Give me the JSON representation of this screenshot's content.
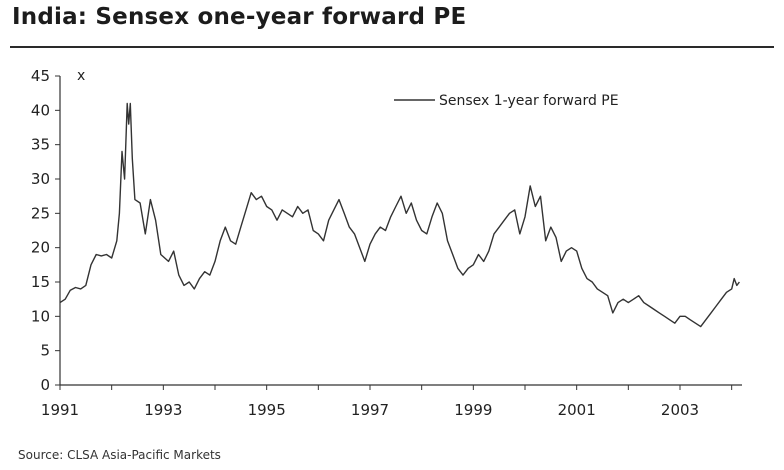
{
  "header": {
    "title": "India: Sensex one-year forward PE"
  },
  "footer": {
    "source": "Source: CLSA Asia-Pacific Markets"
  },
  "chart_data": {
    "type": "line",
    "title": "India: Sensex one-year forward PE",
    "xlabel": "",
    "ylabel": "x",
    "xlim": [
      1991.0,
      2004.2
    ],
    "ylim": [
      0,
      45
    ],
    "x_ticks": [
      1991,
      1993,
      1995,
      1997,
      1999,
      2001,
      2003
    ],
    "y_ticks": [
      0,
      5,
      10,
      15,
      20,
      25,
      30,
      35,
      40,
      45
    ],
    "grid": false,
    "legend_position": "top-right",
    "line_color": "#333333",
    "series": [
      {
        "name": "Sensex 1-year forward PE",
        "points": [
          [
            1991.0,
            12.0
          ],
          [
            1991.1,
            12.5
          ],
          [
            1991.2,
            13.8
          ],
          [
            1991.3,
            14.2
          ],
          [
            1991.4,
            14.0
          ],
          [
            1991.5,
            14.5
          ],
          [
            1991.6,
            17.5
          ],
          [
            1991.7,
            19.0
          ],
          [
            1991.8,
            18.8
          ],
          [
            1991.9,
            19.0
          ],
          [
            1992.0,
            18.5
          ],
          [
            1992.1,
            21.0
          ],
          [
            1992.15,
            25.0
          ],
          [
            1992.2,
            34.0
          ],
          [
            1992.25,
            30.0
          ],
          [
            1992.3,
            41.0
          ],
          [
            1992.33,
            38.0
          ],
          [
            1992.36,
            41.0
          ],
          [
            1992.4,
            33.0
          ],
          [
            1992.45,
            27.0
          ],
          [
            1992.55,
            26.5
          ],
          [
            1992.65,
            22.0
          ],
          [
            1992.75,
            27.0
          ],
          [
            1992.85,
            24.0
          ],
          [
            1992.95,
            19.0
          ],
          [
            1993.1,
            18.0
          ],
          [
            1993.2,
            19.5
          ],
          [
            1993.3,
            16.0
          ],
          [
            1993.4,
            14.5
          ],
          [
            1993.5,
            15.0
          ],
          [
            1993.6,
            14.0
          ],
          [
            1993.7,
            15.5
          ],
          [
            1993.8,
            16.5
          ],
          [
            1993.9,
            16.0
          ],
          [
            1994.0,
            18.0
          ],
          [
            1994.1,
            21.0
          ],
          [
            1994.2,
            23.0
          ],
          [
            1994.3,
            21.0
          ],
          [
            1994.4,
            20.5
          ],
          [
            1994.5,
            23.0
          ],
          [
            1994.6,
            25.5
          ],
          [
            1994.7,
            28.0
          ],
          [
            1994.8,
            27.0
          ],
          [
            1994.9,
            27.5
          ],
          [
            1995.0,
            26.0
          ],
          [
            1995.1,
            25.5
          ],
          [
            1995.2,
            24.0
          ],
          [
            1995.3,
            25.5
          ],
          [
            1995.4,
            25.0
          ],
          [
            1995.5,
            24.5
          ],
          [
            1995.6,
            26.0
          ],
          [
            1995.7,
            25.0
          ],
          [
            1995.8,
            25.5
          ],
          [
            1995.9,
            22.5
          ],
          [
            1996.0,
            22.0
          ],
          [
            1996.1,
            21.0
          ],
          [
            1996.2,
            24.0
          ],
          [
            1996.3,
            25.5
          ],
          [
            1996.4,
            27.0
          ],
          [
            1996.5,
            25.0
          ],
          [
            1996.6,
            23.0
          ],
          [
            1996.7,
            22.0
          ],
          [
            1996.8,
            20.0
          ],
          [
            1996.9,
            18.0
          ],
          [
            1997.0,
            20.5
          ],
          [
            1997.1,
            22.0
          ],
          [
            1997.2,
            23.0
          ],
          [
            1997.3,
            22.5
          ],
          [
            1997.4,
            24.5
          ],
          [
            1997.5,
            26.0
          ],
          [
            1997.6,
            27.5
          ],
          [
            1997.7,
            25.0
          ],
          [
            1997.8,
            26.5
          ],
          [
            1997.9,
            24.0
          ],
          [
            1998.0,
            22.5
          ],
          [
            1998.1,
            22.0
          ],
          [
            1998.2,
            24.5
          ],
          [
            1998.3,
            26.5
          ],
          [
            1998.4,
            25.0
          ],
          [
            1998.5,
            21.0
          ],
          [
            1998.6,
            19.0
          ],
          [
            1998.7,
            17.0
          ],
          [
            1998.8,
            16.0
          ],
          [
            1998.9,
            17.0
          ],
          [
            1999.0,
            17.5
          ],
          [
            1999.1,
            19.0
          ],
          [
            1999.2,
            18.0
          ],
          [
            1999.3,
            19.5
          ],
          [
            1999.4,
            22.0
          ],
          [
            1999.5,
            23.0
          ],
          [
            1999.6,
            24.0
          ],
          [
            1999.7,
            25.0
          ],
          [
            1999.8,
            25.5
          ],
          [
            1999.9,
            22.0
          ],
          [
            2000.0,
            24.5
          ],
          [
            2000.1,
            29.0
          ],
          [
            2000.2,
            26.0
          ],
          [
            2000.3,
            27.5
          ],
          [
            2000.4,
            21.0
          ],
          [
            2000.5,
            23.0
          ],
          [
            2000.6,
            21.5
          ],
          [
            2000.7,
            18.0
          ],
          [
            2000.8,
            19.5
          ],
          [
            2000.9,
            20.0
          ],
          [
            2001.0,
            19.5
          ],
          [
            2001.1,
            17.0
          ],
          [
            2001.2,
            15.5
          ],
          [
            2001.3,
            15.0
          ],
          [
            2001.4,
            14.0
          ],
          [
            2001.5,
            13.5
          ],
          [
            2001.6,
            13.0
          ],
          [
            2001.7,
            10.5
          ],
          [
            2001.8,
            12.0
          ],
          [
            2001.9,
            12.5
          ],
          [
            2002.0,
            12.0
          ],
          [
            2002.1,
            12.5
          ],
          [
            2002.2,
            13.0
          ],
          [
            2002.3,
            12.0
          ],
          [
            2002.4,
            11.5
          ],
          [
            2002.5,
            11.0
          ],
          [
            2002.6,
            10.5
          ],
          [
            2002.7,
            10.0
          ],
          [
            2002.8,
            9.5
          ],
          [
            2002.9,
            9.0
          ],
          [
            2003.0,
            10.0
          ],
          [
            2003.1,
            10.0
          ],
          [
            2003.2,
            9.5
          ],
          [
            2003.3,
            9.0
          ],
          [
            2003.4,
            8.5
          ],
          [
            2003.5,
            9.5
          ],
          [
            2003.6,
            10.5
          ],
          [
            2003.7,
            11.5
          ],
          [
            2003.8,
            12.5
          ],
          [
            2003.9,
            13.5
          ],
          [
            2004.0,
            14.0
          ],
          [
            2004.05,
            15.5
          ],
          [
            2004.1,
            14.5
          ],
          [
            2004.15,
            15.0
          ]
        ]
      }
    ]
  }
}
